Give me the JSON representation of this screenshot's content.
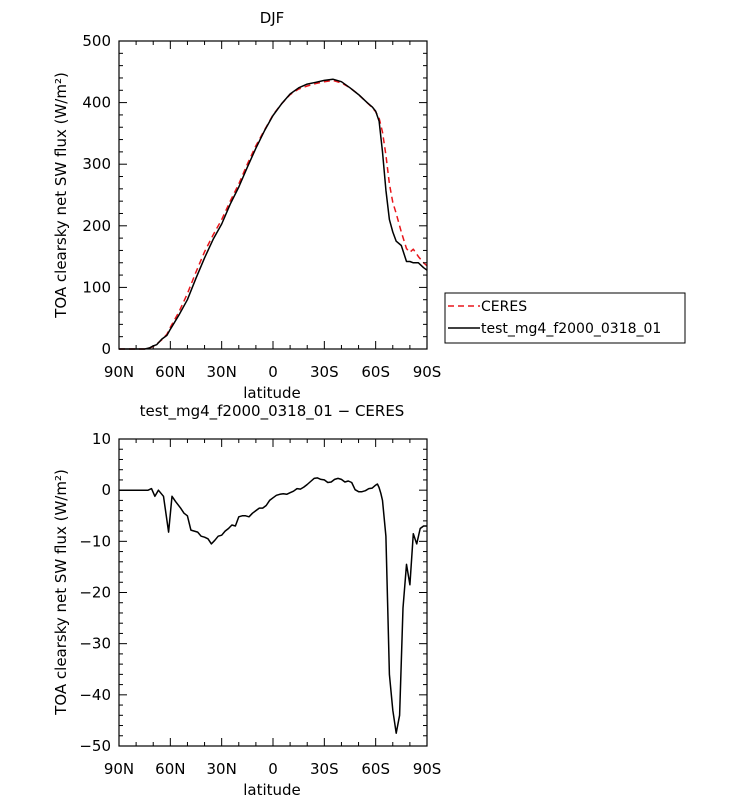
{
  "chart_data": [
    {
      "type": "line",
      "title": "DJF",
      "xlabel": "latitude",
      "ylabel": "TOA clearsky net SW flux (W/m²)",
      "xlim": [
        -90,
        90
      ],
      "ylim": [
        0,
        500
      ],
      "xticks": [
        -90,
        -60,
        -30,
        0,
        30,
        60,
        90
      ],
      "xtick_labels": [
        "90N",
        "60N",
        "30N",
        "0",
        "30S",
        "60S",
        "90S"
      ],
      "yticks": [
        0,
        100,
        200,
        300,
        400,
        500
      ],
      "ytick_labels": [
        "0",
        "100",
        "200",
        "300",
        "400",
        "500"
      ],
      "grid": false,
      "legend": "outside-right",
      "series": [
        {
          "name": "CERES",
          "color": "#e8161b",
          "dash": "dashed",
          "x": [
            -90,
            -80,
            -75,
            -72,
            -70,
            -68,
            -65,
            -62,
            -60,
            -55,
            -50,
            -45,
            -40,
            -35,
            -30,
            -25,
            -20,
            -15,
            -10,
            -5,
            0,
            5,
            10,
            15,
            20,
            25,
            30,
            35,
            40,
            45,
            50,
            55,
            58,
            60,
            62,
            64,
            66,
            68,
            70,
            72,
            75,
            78,
            80,
            82,
            85,
            88,
            90
          ],
          "y": [
            0,
            0,
            0,
            2,
            4,
            8,
            15,
            24,
            35,
            60,
            90,
            125,
            158,
            185,
            210,
            240,
            268,
            300,
            330,
            355,
            380,
            398,
            413,
            422,
            427,
            431,
            434,
            436,
            432,
            424,
            413,
            400,
            392,
            385,
            375,
            352,
            315,
            268,
            238,
            220,
            190,
            163,
            157,
            162,
            150,
            140,
            135
          ]
        },
        {
          "name": "test_mg4_f2000_0318_01",
          "color": "#000000",
          "dash": "solid",
          "x": [
            -90,
            -80,
            -75,
            -72,
            -70,
            -68,
            -65,
            -62,
            -60,
            -55,
            -50,
            -45,
            -40,
            -35,
            -30,
            -25,
            -20,
            -15,
            -10,
            -5,
            0,
            5,
            10,
            15,
            20,
            25,
            30,
            35,
            40,
            45,
            50,
            55,
            58,
            60,
            62,
            64,
            66,
            68,
            70,
            72,
            75,
            78,
            80,
            82,
            85,
            88,
            90
          ],
          "y": [
            0,
            0,
            0,
            2,
            5,
            7,
            16,
            22,
            32,
            55,
            80,
            115,
            148,
            178,
            203,
            235,
            263,
            295,
            326,
            354,
            379,
            398,
            414,
            424,
            430,
            433,
            436,
            438,
            434,
            424,
            413,
            400,
            393,
            386,
            370,
            320,
            258,
            210,
            190,
            175,
            168,
            142,
            142,
            140,
            140,
            132,
            128
          ]
        }
      ]
    },
    {
      "type": "line",
      "title": "test_mg4_f2000_0318_01 − CERES",
      "xlabel": "latitude",
      "ylabel": "TOA clearsky net SW flux (W/m²)",
      "xlim": [
        -90,
        90
      ],
      "ylim": [
        -50,
        10
      ],
      "xticks": [
        -90,
        -60,
        -30,
        0,
        30,
        60,
        90
      ],
      "xtick_labels": [
        "90N",
        "60N",
        "30N",
        "0",
        "30S",
        "60S",
        "90S"
      ],
      "yticks": [
        -50,
        -40,
        -30,
        -20,
        -10,
        0,
        10
      ],
      "ytick_labels": [
        "−50",
        "−40",
        "−30",
        "−20",
        "−10",
        "0",
        "10"
      ],
      "grid": false,
      "series": [
        {
          "color": "#000000",
          "x": [
            -90,
            -84,
            -80,
            -77,
            -75,
            -73,
            -71,
            -69,
            -67,
            -64,
            -61,
            -59,
            -57,
            -54,
            -52,
            -50,
            -48,
            -46,
            -44,
            -42,
            -40,
            -38,
            -36,
            -34,
            -32,
            -30,
            -28,
            -26,
            -24,
            -22,
            -20,
            -18,
            -16,
            -14,
            -12,
            -10,
            -8,
            -6,
            -4,
            -2,
            0,
            2,
            4,
            6,
            8,
            10,
            12,
            14,
            16,
            18,
            20,
            22,
            24,
            26,
            28,
            30,
            32,
            34,
            36,
            38,
            40,
            42,
            44,
            46,
            48,
            50,
            52,
            54,
            56,
            58,
            60,
            61,
            62,
            63,
            64,
            66,
            67,
            68,
            70,
            72,
            74,
            76,
            78,
            80,
            82,
            84,
            86,
            88,
            90
          ],
          "y": [
            0,
            0,
            0,
            0,
            0,
            0,
            0.3,
            -1.2,
            0,
            -1.2,
            -8.2,
            -1.2,
            -2.2,
            -3.5,
            -4.5,
            -5,
            -7.8,
            -8,
            -8.2,
            -9,
            -9.2,
            -9.5,
            -10.5,
            -9.8,
            -9,
            -8.8,
            -8,
            -7.5,
            -6.8,
            -7,
            -5.2,
            -5,
            -5,
            -5.2,
            -4.5,
            -4,
            -3.5,
            -3.5,
            -3,
            -2,
            -1.5,
            -1,
            -0.8,
            -0.7,
            -0.8,
            -0.5,
            -0.2,
            0.3,
            0.2,
            0.6,
            1.1,
            1.7,
            2.3,
            2.4,
            2.1,
            2,
            1.5,
            1.6,
            2.1,
            2.3,
            2.1,
            1.6,
            1.8,
            1.5,
            0.1,
            -0.3,
            -0.3,
            -0.1,
            0.3,
            0.4,
            1,
            1.2,
            0.5,
            -0.6,
            -2,
            -9,
            -22,
            -36,
            -43,
            -47.5,
            -44,
            -23,
            -14.5,
            -18.5,
            -8.5,
            -10.5,
            -7.5,
            -7,
            -7
          ]
        }
      ]
    }
  ]
}
